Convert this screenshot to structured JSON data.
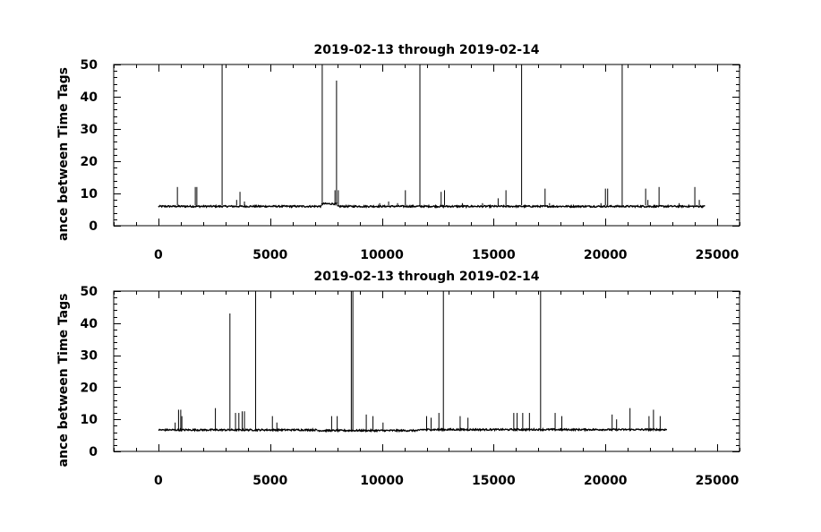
{
  "chart_data": [
    {
      "type": "line",
      "title": "2019-02-13 through 2019-02-14",
      "xlabel": "",
      "ylabel": "ance between Time Tags",
      "xlim": [
        -2000,
        26000
      ],
      "ylim": [
        0,
        50
      ],
      "xticks": [
        0,
        5000,
        10000,
        15000,
        20000,
        25000
      ],
      "yticks": [
        0,
        10,
        20,
        30,
        40,
        50
      ],
      "x_minor_step": 1000,
      "y_minor_step": 2,
      "grid": false,
      "series": [
        {
          "baseline_segments": [
            {
              "x": [
                0,
                7300
              ],
              "y": 6
            },
            {
              "x": [
                7300,
                8000
              ],
              "y": 6.8
            },
            {
              "x": [
                8000,
                24450
              ],
              "y": 6
            }
          ],
          "spikes": [
            {
              "x": 850,
              "y": 12
            },
            {
              "x": 1650,
              "y": 12
            },
            {
              "x": 1720,
              "y": 12
            },
            {
              "x": 2850,
              "y": 50
            },
            {
              "x": 3500,
              "y": 8
            },
            {
              "x": 3650,
              "y": 10.5
            },
            {
              "x": 3850,
              "y": 7.5
            },
            {
              "x": 7330,
              "y": 50
            },
            {
              "x": 7900,
              "y": 11
            },
            {
              "x": 7970,
              "y": 45
            },
            {
              "x": 8050,
              "y": 11
            },
            {
              "x": 9900,
              "y": 7
            },
            {
              "x": 10300,
              "y": 7.5
            },
            {
              "x": 10700,
              "y": 7
            },
            {
              "x": 11050,
              "y": 11
            },
            {
              "x": 11700,
              "y": 50
            },
            {
              "x": 12650,
              "y": 10.5
            },
            {
              "x": 12800,
              "y": 11
            },
            {
              "x": 13600,
              "y": 7
            },
            {
              "x": 14500,
              "y": 7
            },
            {
              "x": 15200,
              "y": 8.5
            },
            {
              "x": 15550,
              "y": 11
            },
            {
              "x": 16250,
              "y": 50
            },
            {
              "x": 17300,
              "y": 11.5
            },
            {
              "x": 17500,
              "y": 7
            },
            {
              "x": 19800,
              "y": 7
            },
            {
              "x": 20000,
              "y": 11.5
            },
            {
              "x": 20100,
              "y": 11.5
            },
            {
              "x": 20750,
              "y": 50
            },
            {
              "x": 21800,
              "y": 11.5
            },
            {
              "x": 21900,
              "y": 8
            },
            {
              "x": 22400,
              "y": 12
            },
            {
              "x": 23300,
              "y": 7
            },
            {
              "x": 24000,
              "y": 12
            },
            {
              "x": 24200,
              "y": 8
            }
          ]
        }
      ]
    },
    {
      "type": "line",
      "title": "2019-02-13 through 2019-02-14",
      "xlabel": "",
      "ylabel": "ance between Time Tags",
      "xlim": [
        -2000,
        26000
      ],
      "ylim": [
        0,
        50
      ],
      "xticks": [
        0,
        5000,
        10000,
        15000,
        20000,
        25000
      ],
      "yticks": [
        0,
        10,
        20,
        30,
        40,
        50
      ],
      "x_minor_step": 1000,
      "y_minor_step": 2,
      "grid": false,
      "series": [
        {
          "baseline_segments": [
            {
              "x": [
                0,
                7100
              ],
              "y": 6.7
            },
            {
              "x": [
                7100,
                11700
              ],
              "y": 6.5
            },
            {
              "x": [
                11700,
                22750
              ],
              "y": 6.8
            }
          ],
          "spikes": [
            {
              "x": 750,
              "y": 9
            },
            {
              "x": 900,
              "y": 13
            },
            {
              "x": 1000,
              "y": 13
            },
            {
              "x": 1050,
              "y": 11
            },
            {
              "x": 2550,
              "y": 13.5
            },
            {
              "x": 3200,
              "y": 43
            },
            {
              "x": 3450,
              "y": 12
            },
            {
              "x": 3600,
              "y": 12
            },
            {
              "x": 3750,
              "y": 12.5
            },
            {
              "x": 3850,
              "y": 12.5
            },
            {
              "x": 4350,
              "y": 50
            },
            {
              "x": 5100,
              "y": 11
            },
            {
              "x": 5300,
              "y": 9
            },
            {
              "x": 7750,
              "y": 11
            },
            {
              "x": 8000,
              "y": 11
            },
            {
              "x": 8630,
              "y": 50
            },
            {
              "x": 8700,
              "y": 50
            },
            {
              "x": 9300,
              "y": 11.5
            },
            {
              "x": 9600,
              "y": 11
            },
            {
              "x": 10050,
              "y": 9
            },
            {
              "x": 12000,
              "y": 11
            },
            {
              "x": 12200,
              "y": 10.5
            },
            {
              "x": 12550,
              "y": 12
            },
            {
              "x": 12750,
              "y": 50
            },
            {
              "x": 13500,
              "y": 11
            },
            {
              "x": 13850,
              "y": 10.5
            },
            {
              "x": 15900,
              "y": 12
            },
            {
              "x": 16050,
              "y": 12
            },
            {
              "x": 16300,
              "y": 12
            },
            {
              "x": 16600,
              "y": 12
            },
            {
              "x": 17100,
              "y": 50
            },
            {
              "x": 17750,
              "y": 12
            },
            {
              "x": 18050,
              "y": 11
            },
            {
              "x": 20300,
              "y": 11.5
            },
            {
              "x": 20500,
              "y": 10
            },
            {
              "x": 21100,
              "y": 13.5
            },
            {
              "x": 21950,
              "y": 11
            },
            {
              "x": 22150,
              "y": 13
            },
            {
              "x": 22450,
              "y": 11
            }
          ]
        }
      ]
    }
  ]
}
